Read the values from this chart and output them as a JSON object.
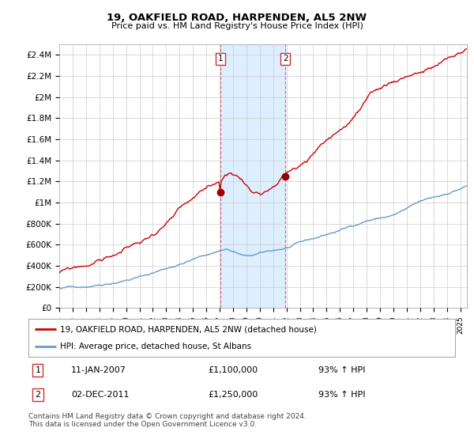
{
  "title": "19, OAKFIELD ROAD, HARPENDEN, AL5 2NW",
  "subtitle": "Price paid vs. HM Land Registry's House Price Index (HPI)",
  "legend_line1": "19, OAKFIELD ROAD, HARPENDEN, AL5 2NW (detached house)",
  "legend_line2": "HPI: Average price, detached house, St Albans",
  "annotation1_label": "1",
  "annotation1_date": "11-JAN-2007",
  "annotation1_price": "£1,100,000",
  "annotation1_hpi": "93% ↑ HPI",
  "annotation2_label": "2",
  "annotation2_date": "02-DEC-2011",
  "annotation2_price": "£1,250,000",
  "annotation2_hpi": "93% ↑ HPI",
  "footer": "Contains HM Land Registry data © Crown copyright and database right 2024.\nThis data is licensed under the Open Government Licence v3.0.",
  "red_color": "#cc0000",
  "blue_color": "#6699cc",
  "highlight_color": "#ddeeff",
  "highlight_border": "#cc4444",
  "ylim": [
    0,
    2500000
  ],
  "yticks": [
    0,
    200000,
    400000,
    600000,
    800000,
    1000000,
    1200000,
    1400000,
    1600000,
    1800000,
    2000000,
    2200000,
    2400000
  ],
  "ytick_labels": [
    "£0",
    "£200K",
    "£400K",
    "£600K",
    "£800K",
    "£1M",
    "£1.2M",
    "£1.4M",
    "£1.6M",
    "£1.8M",
    "£2M",
    "£2.2M",
    "£2.4M"
  ],
  "t_sale1": 2007.04,
  "t_sale2": 2011.92,
  "sale1_value": 1100000,
  "sale2_value": 1250000,
  "xmin": 1995.0,
  "xmax": 2025.5
}
